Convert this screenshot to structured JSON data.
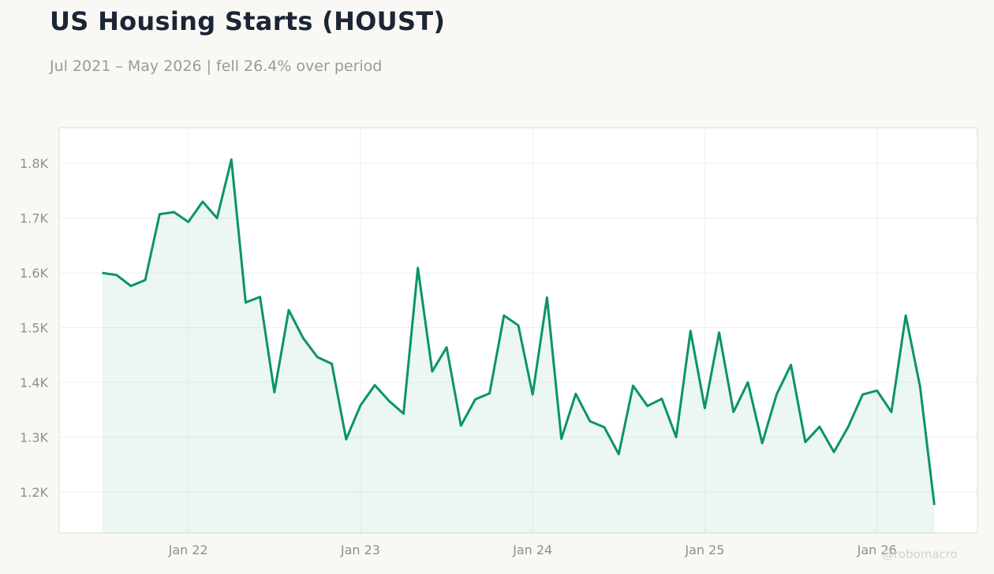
{
  "header": {
    "title": "US Housing Starts (HOUST)",
    "subtitle": "Jul 2021 – May 2026 | fell 26.4% over period"
  },
  "watermark": "@robomacro",
  "colors": {
    "line": "#0b9467",
    "fill": "#0b9467",
    "plot_bg": "#ffffff",
    "page_bg": "#f9f8f5",
    "grid": "#efefef"
  },
  "chart_data": {
    "type": "area",
    "title": "US Housing Starts (HOUST)",
    "xlabel": "",
    "ylabel": "",
    "grid": true,
    "legend": "none",
    "ylim": [
      1125,
      1865
    ],
    "xlim": [
      "2021-04",
      "2026-08"
    ],
    "y_ticks": [
      1200,
      1300,
      1400,
      1500,
      1600,
      1700,
      1800
    ],
    "y_tick_labels": [
      "1.2K",
      "1.3K",
      "1.4K",
      "1.5K",
      "1.6K",
      "1.7K",
      "1.8K"
    ],
    "x_ticks": [
      "2022-01",
      "2023-01",
      "2024-01",
      "2025-01",
      "2026-01"
    ],
    "x_tick_labels": [
      "Jan 22",
      "Jan 23",
      "Jan 24",
      "Jan 25",
      "Jan 26"
    ],
    "series": [
      {
        "x": [
          "2021-07",
          "2021-08",
          "2021-09",
          "2021-10",
          "2021-11",
          "2021-12",
          "2022-01",
          "2022-02",
          "2022-03",
          "2022-04",
          "2022-05",
          "2022-06",
          "2022-07",
          "2022-08",
          "2022-09",
          "2022-10",
          "2022-11",
          "2022-12",
          "2023-01",
          "2023-02",
          "2023-03",
          "2023-04",
          "2023-05",
          "2023-06",
          "2023-07",
          "2023-08",
          "2023-09",
          "2023-10",
          "2023-11",
          "2023-12",
          "2024-01",
          "2024-02",
          "2024-03",
          "2024-04",
          "2024-05",
          "2024-06",
          "2024-07",
          "2024-08",
          "2024-09",
          "2024-10",
          "2024-11",
          "2024-12",
          "2025-01",
          "2025-02",
          "2025-03",
          "2025-04",
          "2025-05",
          "2025-06",
          "2025-07",
          "2025-08",
          "2025-09",
          "2025-10",
          "2025-11",
          "2025-12",
          "2026-01",
          "2026-02",
          "2026-03",
          "2026-04",
          "2026-05"
        ],
        "values": [
          1600,
          1596,
          1576,
          1587,
          1707,
          1711,
          1693,
          1730,
          1700,
          1807,
          1546,
          1556,
          1382,
          1532,
          1481,
          1446,
          1434,
          1296,
          1358,
          1395,
          1366,
          1343,
          1609,
          1420,
          1464,
          1321,
          1369,
          1380,
          1522,
          1504,
          1378,
          1555,
          1297,
          1379,
          1329,
          1318,
          1269,
          1394,
          1357,
          1370,
          1300,
          1494,
          1353,
          1491,
          1346,
          1400,
          1289,
          1378,
          1432,
          1291,
          1319,
          1273,
          1319,
          1378,
          1385,
          1346,
          1522,
          1392,
          1176
        ]
      }
    ]
  }
}
